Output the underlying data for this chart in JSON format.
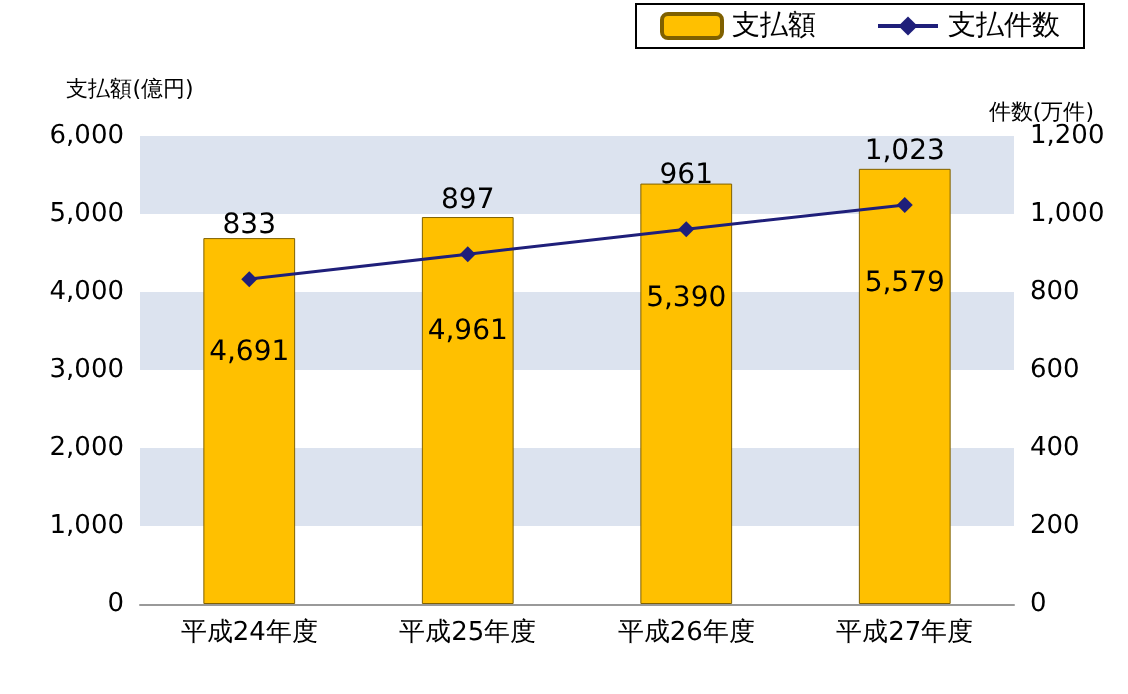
{
  "chart_data": {
    "type": "bar",
    "categories": [
      "平成24年度",
      "平成25年度",
      "平成26年度",
      "平成27年度"
    ],
    "series": [
      {
        "name": "支払額",
        "color": "#ffc000",
        "values": [
          4691,
          4961,
          5390,
          5579
        ],
        "value_labels": [
          "4,691",
          "4,961",
          "5,390",
          "5,579"
        ]
      },
      {
        "name": "支払件数",
        "type": "line",
        "axis": "y2",
        "color": "#1f1f7a",
        "marker": "diamond",
        "values": [
          833,
          897,
          961,
          1023
        ],
        "value_labels": [
          "833",
          "897",
          "961",
          "1,023"
        ]
      }
    ],
    "ylabel": "支払額(億円)",
    "y2label": "件数(万件)",
    "ylim": [
      0,
      6000
    ],
    "yticks": [
      0,
      {
        "value": 1000,
        "label": "1,000"
      },
      {
        "value": 2000,
        "label": "2,000"
      },
      {
        "value": 3000,
        "label": "3,000"
      },
      {
        "value": 4000,
        "label": "4,000"
      },
      {
        "value": 5000,
        "label": "5,000"
      },
      {
        "value": 6000,
        "label": "6,000"
      }
    ],
    "y2lim": [
      0,
      1200
    ],
    "y2ticks": [
      0,
      200,
      400,
      600,
      800,
      {
        "value": 1000,
        "label": "1,000"
      },
      {
        "value": 1200,
        "label": "1,200"
      }
    ],
    "bands": [
      {
        "axis": "y",
        "from": 1000,
        "to": 2000,
        "color": "#dce3ef"
      },
      {
        "axis": "y",
        "from": 3000,
        "to": 4000,
        "color": "#dce3ef"
      },
      {
        "axis": "y",
        "from": 5000,
        "to": 6000,
        "color": "#dce3ef"
      }
    ],
    "legend": "top right"
  }
}
